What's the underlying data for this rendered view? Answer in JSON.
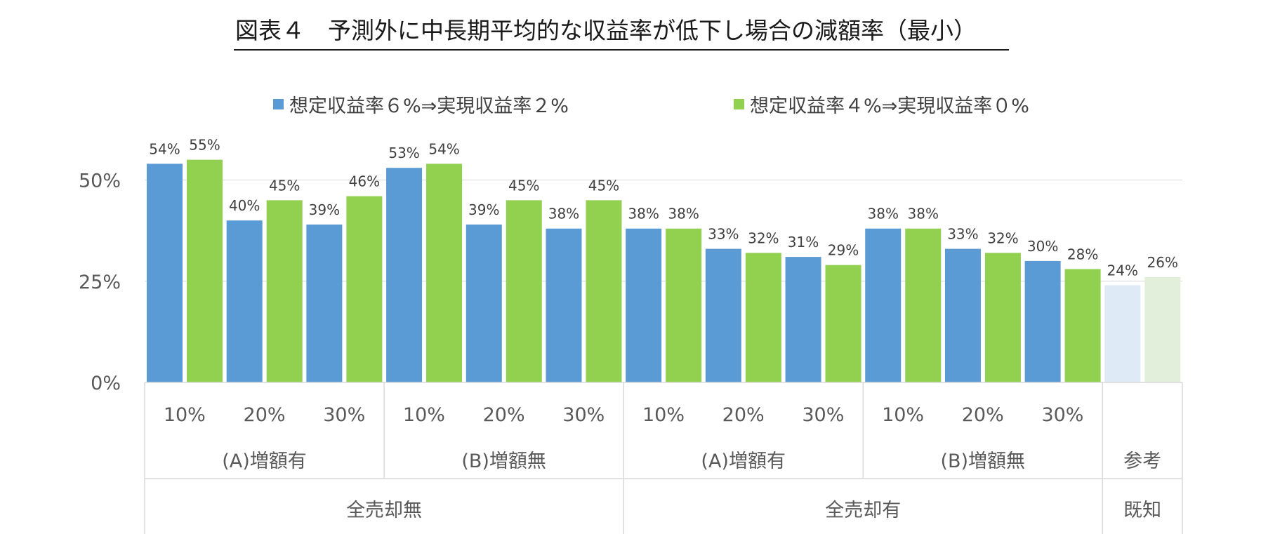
{
  "chart_data": {
    "type": "bar",
    "title": "図表４　予測外に中長期平均的な収益率が低下し場合の減額率（最小）",
    "ylim": [
      0,
      60
    ],
    "y_ticks": [
      {
        "value": 0,
        "label": "0%"
      },
      {
        "value": 25,
        "label": "25%"
      },
      {
        "value": 50,
        "label": "50%"
      }
    ],
    "grid": true,
    "legend_position": "top",
    "series": [
      {
        "name": "想定収益率６%⇒実現収益率２%",
        "color": "#5b9bd5",
        "values": [
          54,
          40,
          39,
          53,
          39,
          38,
          38,
          33,
          31,
          38,
          33,
          30,
          24
        ],
        "labels": [
          "54%",
          "40%",
          "39%",
          "53%",
          "39%",
          "38%",
          "38%",
          "33%",
          "31%",
          "38%",
          "33%",
          "30%",
          "24%"
        ]
      },
      {
        "name": "想定収益率４%⇒実現収益率０%",
        "color": "#92d050",
        "values": [
          55,
          45,
          46,
          54,
          45,
          45,
          38,
          32,
          29,
          38,
          32,
          28,
          26
        ],
        "labels": [
          "55%",
          "45%",
          "46%",
          "54%",
          "45%",
          "45%",
          "38%",
          "32%",
          "29%",
          "38%",
          "32%",
          "28%",
          "26%"
        ]
      }
    ],
    "faded_colors": [
      "#deebf7",
      "#e2efda"
    ],
    "categories": [
      "10%",
      "20%",
      "30%",
      "10%",
      "20%",
      "30%",
      "10%",
      "20%",
      "30%",
      "10%",
      "20%",
      "30%",
      ""
    ],
    "group_level2": [
      {
        "label": "(A)増額有",
        "span": 3
      },
      {
        "label": "(B)増額無",
        "span": 3
      },
      {
        "label": "(A)増額有",
        "span": 3
      },
      {
        "label": "(B)増額無",
        "span": 3
      },
      {
        "label": "参考",
        "span": 1
      }
    ],
    "group_level1": [
      {
        "label": "全売却無",
        "span": 6
      },
      {
        "label": "全売却有",
        "span": 6
      },
      {
        "label": "既知",
        "span": 1
      }
    ]
  }
}
